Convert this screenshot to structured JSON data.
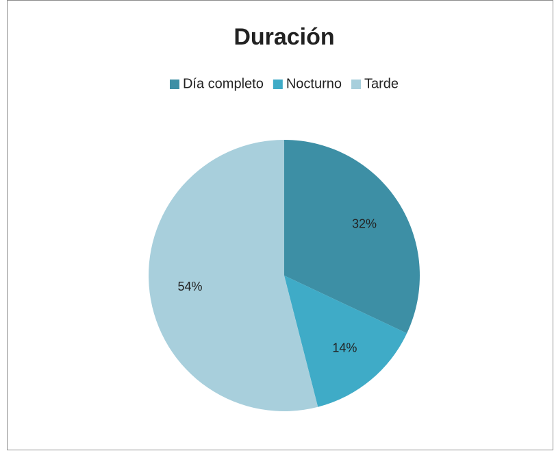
{
  "chart_data": {
    "type": "pie",
    "title": "Duración",
    "categories": [
      "Día completo",
      "Nocturno",
      "Tarde"
    ],
    "values": [
      32,
      14,
      54
    ],
    "value_labels": [
      "32%",
      "14%",
      "54%"
    ],
    "colors": [
      "#3d8fa5",
      "#3fabc7",
      "#a8cfdc"
    ],
    "legend": "top"
  }
}
